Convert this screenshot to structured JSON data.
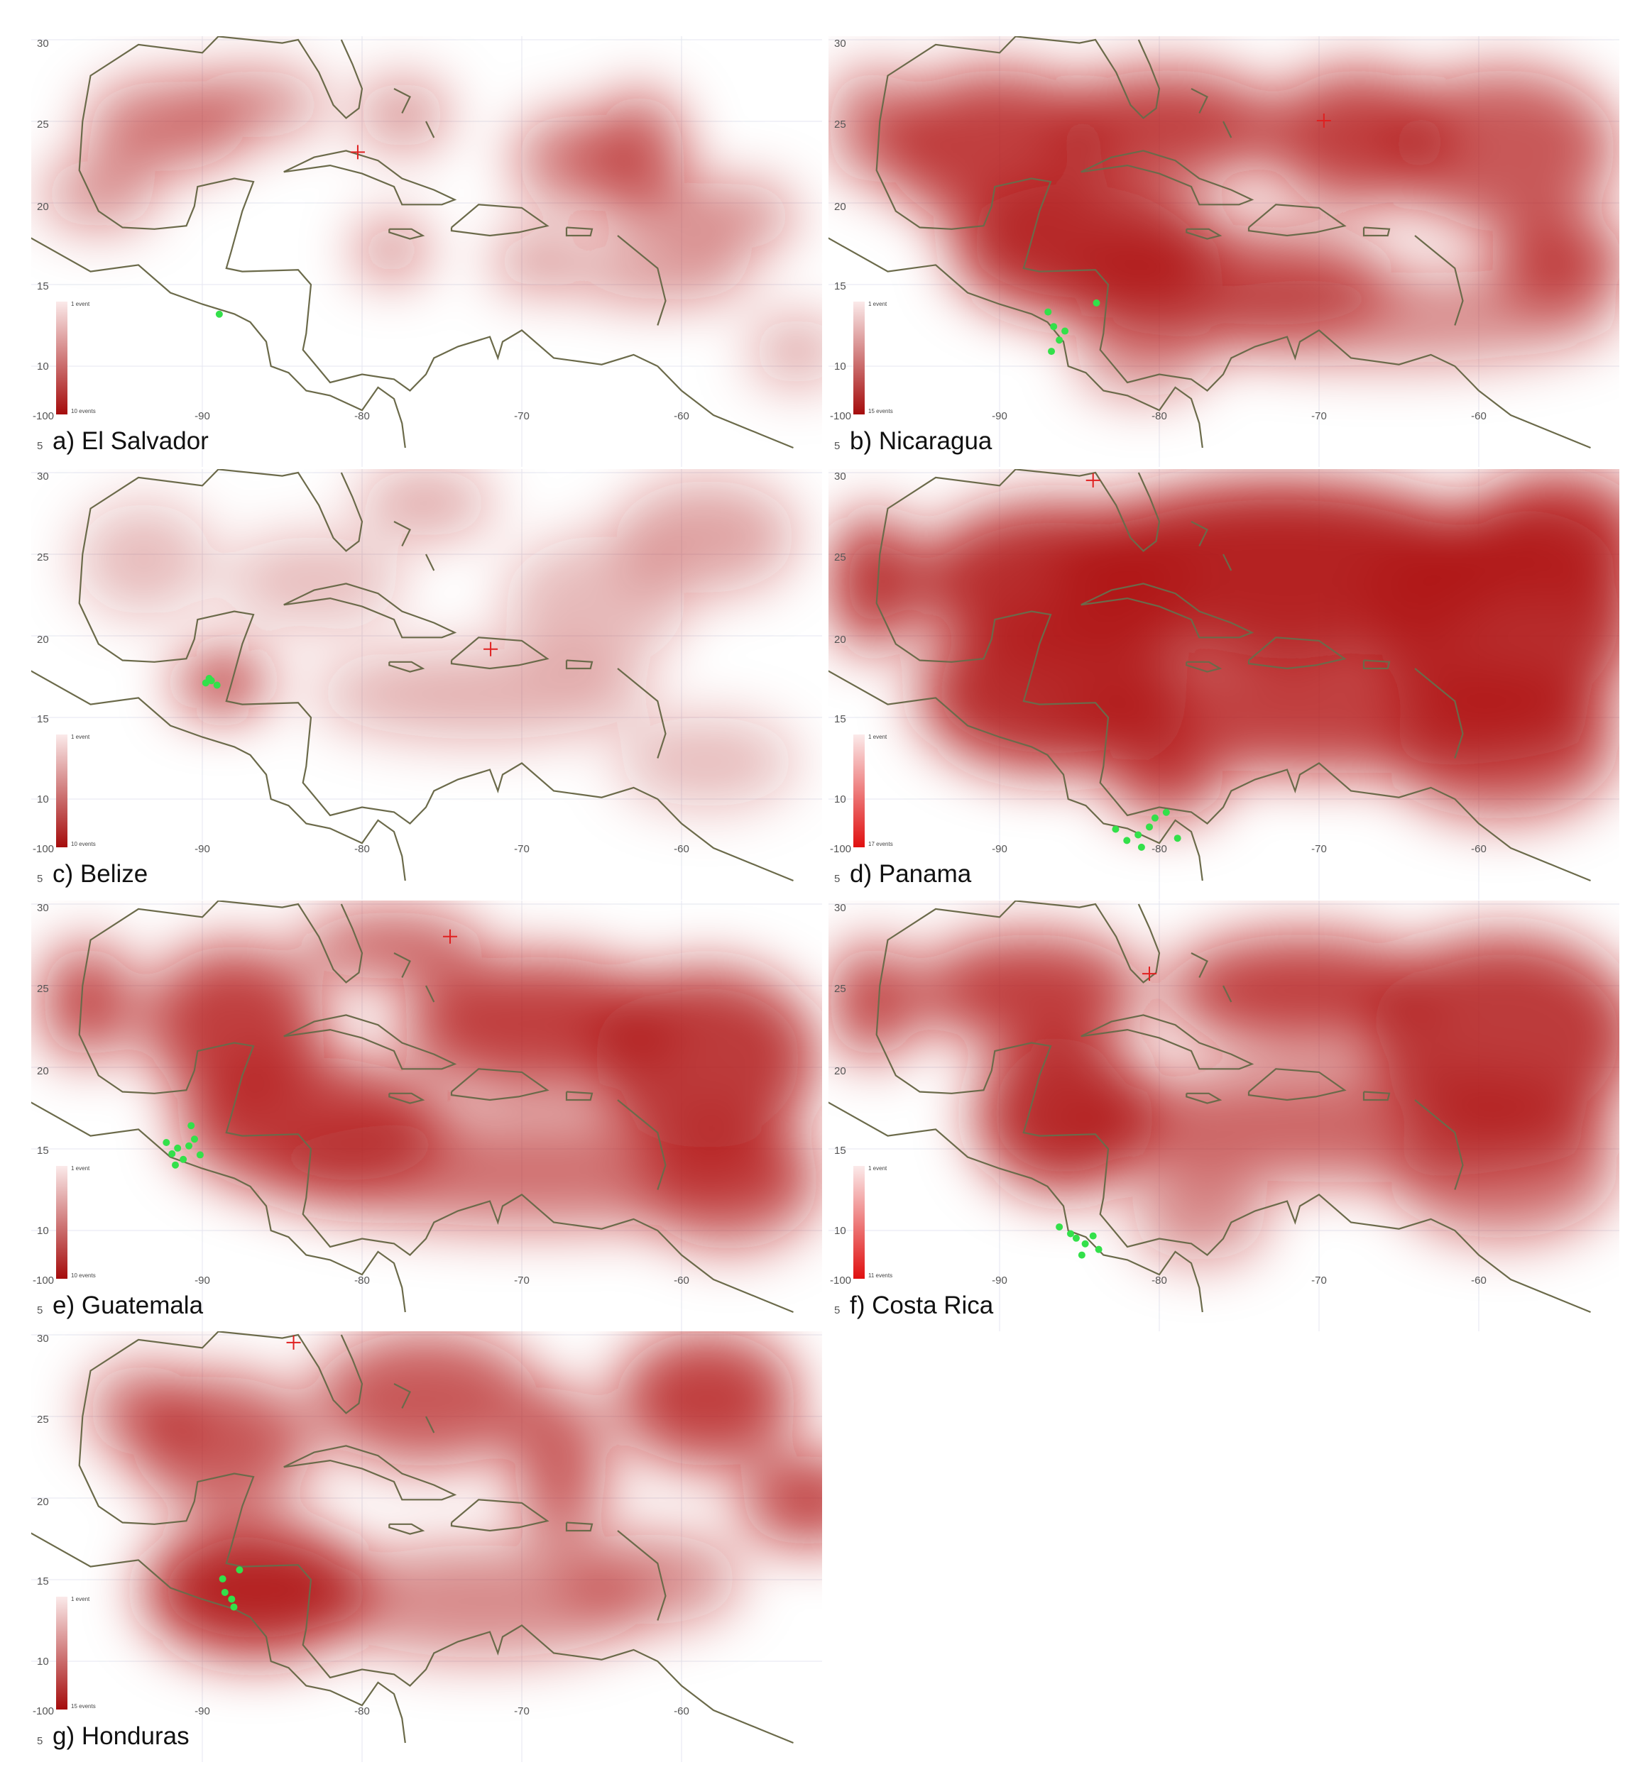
{
  "axes": {
    "lat_labels": [
      "30",
      "25",
      "20",
      "15",
      "10"
    ],
    "corner_lon": "-100",
    "corner_lat": "5",
    "lon_labels": [
      "-90",
      "-80",
      "-70",
      "-60"
    ]
  },
  "legend_min": "1 event",
  "panels": [
    {
      "caption": "a) El Salvador",
      "legend_max": "10 events"
    },
    {
      "caption": "b) Nicaragua",
      "legend_max": "15 events"
    },
    {
      "caption": "c) Belize",
      "legend_max": "10 events"
    },
    {
      "caption": "d) Panama",
      "legend_max": "17 events"
    },
    {
      "caption": "e) Guatemala",
      "legend_max": "10 events"
    },
    {
      "caption": "f) Costa Rica",
      "legend_max": "11 events"
    },
    {
      "caption": "g) Honduras",
      "legend_max": "15 events"
    }
  ]
}
